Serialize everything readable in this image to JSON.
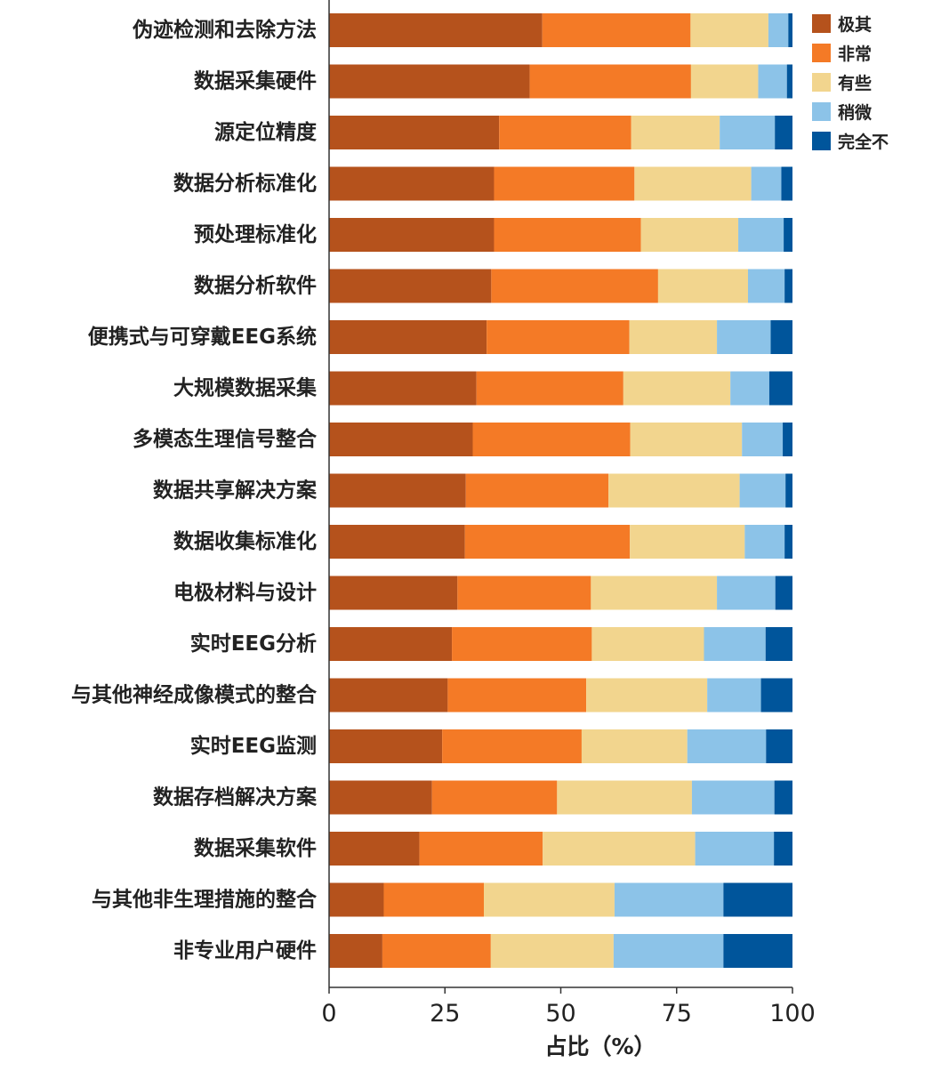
{
  "chart_data": {
    "type": "bar",
    "orientation": "horizontal",
    "stacked": true,
    "xlabel": "占比（%）",
    "xlim": [
      0,
      100
    ],
    "xticks": [
      0,
      25,
      50,
      75,
      100
    ],
    "grid": false,
    "legend_position": "top-right",
    "categories": [
      "伪迹检测和去除方法",
      "数据采集硬件",
      "源定位精度",
      "数据分析标准化",
      "预处理标准化",
      "数据分析软件",
      "便携式与可穿戴EEG系统",
      "大规模数据采集",
      "多模态生理信号整合",
      "数据共享解决方案",
      "数据收集标准化",
      "电极材料与设计",
      "实时EEG分析",
      "与其他神经成像模式的整合",
      "实时EEG监测",
      "数据存档解决方案",
      "数据采集软件",
      "与其他非生理措施的整合",
      "非专业用户硬件"
    ],
    "series": [
      {
        "name": "极其",
        "color": "#b5521c",
        "values": [
          46,
          43.3,
          36.7,
          35.6,
          35.6,
          35.0,
          34.0,
          31.8,
          31.0,
          29.5,
          29.3,
          27.7,
          26.5,
          25.6,
          24.4,
          22.2,
          19.5,
          11.8,
          11.5
        ]
      },
      {
        "name": "非常",
        "color": "#f47a26",
        "values": [
          32,
          34.8,
          28.5,
          30.3,
          31.7,
          36.0,
          30.8,
          31.7,
          34.0,
          30.8,
          35.6,
          28.8,
          30.2,
          29.9,
          30.1,
          27.0,
          26.6,
          21.6,
          23.4
        ]
      },
      {
        "name": "有些",
        "color": "#f2d58e",
        "values": [
          16.8,
          14.5,
          19.1,
          25.2,
          21.0,
          19.4,
          18.9,
          23.1,
          24.1,
          28.3,
          24.8,
          27.2,
          24.2,
          26.1,
          22.8,
          29.1,
          32.9,
          28.2,
          26.5
        ]
      },
      {
        "name": "稍微",
        "color": "#8cc3e8",
        "values": [
          4.3,
          6.2,
          11.9,
          6.5,
          9.8,
          7.9,
          11.6,
          8.4,
          8.8,
          9.9,
          8.6,
          12.6,
          13.3,
          11.6,
          17.0,
          17.8,
          17.0,
          23.5,
          23.7
        ]
      },
      {
        "name": "完全不",
        "color": "#00559b",
        "values": [
          0.9,
          1.2,
          3.8,
          2.4,
          1.9,
          1.7,
          4.7,
          5.0,
          2.1,
          1.5,
          1.7,
          3.7,
          5.8,
          6.8,
          5.7,
          3.9,
          4.0,
          14.9,
          14.9
        ]
      }
    ]
  }
}
